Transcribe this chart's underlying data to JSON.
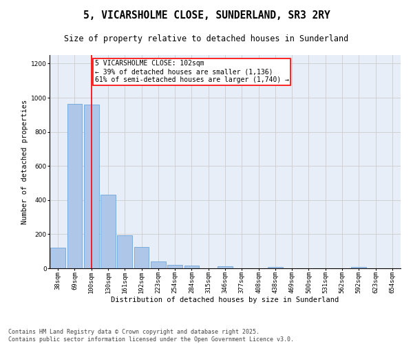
{
  "title": "5, VICARSHOLME CLOSE, SUNDERLAND, SR3 2RY",
  "subtitle": "Size of property relative to detached houses in Sunderland",
  "xlabel": "Distribution of detached houses by size in Sunderland",
  "ylabel": "Number of detached properties",
  "categories": [
    "38sqm",
    "69sqm",
    "100sqm",
    "130sqm",
    "161sqm",
    "192sqm",
    "223sqm",
    "254sqm",
    "284sqm",
    "315sqm",
    "346sqm",
    "377sqm",
    "408sqm",
    "438sqm",
    "469sqm",
    "500sqm",
    "531sqm",
    "562sqm",
    "592sqm",
    "623sqm",
    "654sqm"
  ],
  "values": [
    120,
    965,
    960,
    430,
    195,
    125,
    40,
    20,
    18,
    0,
    12,
    0,
    0,
    8,
    0,
    0,
    0,
    0,
    8,
    0,
    0
  ],
  "bar_color": "#aec6e8",
  "bar_edge_color": "#5b9bd5",
  "vline_x_index": 2,
  "vline_color": "red",
  "annotation_line1": "5 VICARSHOLME CLOSE: 102sqm",
  "annotation_line2": "← 39% of detached houses are smaller (1,136)",
  "annotation_line3": "61% of semi-detached houses are larger (1,740) →",
  "ylim": [
    0,
    1250
  ],
  "yticks": [
    0,
    200,
    400,
    600,
    800,
    1000,
    1200
  ],
  "grid_color": "#cccccc",
  "bg_color": "#e8eef8",
  "footer_line1": "Contains HM Land Registry data © Crown copyright and database right 2025.",
  "footer_line2": "Contains public sector information licensed under the Open Government Licence v3.0.",
  "title_fontsize": 10.5,
  "subtitle_fontsize": 8.5,
  "axis_label_fontsize": 7.5,
  "tick_fontsize": 6.5,
  "annotation_fontsize": 7,
  "footer_fontsize": 6
}
